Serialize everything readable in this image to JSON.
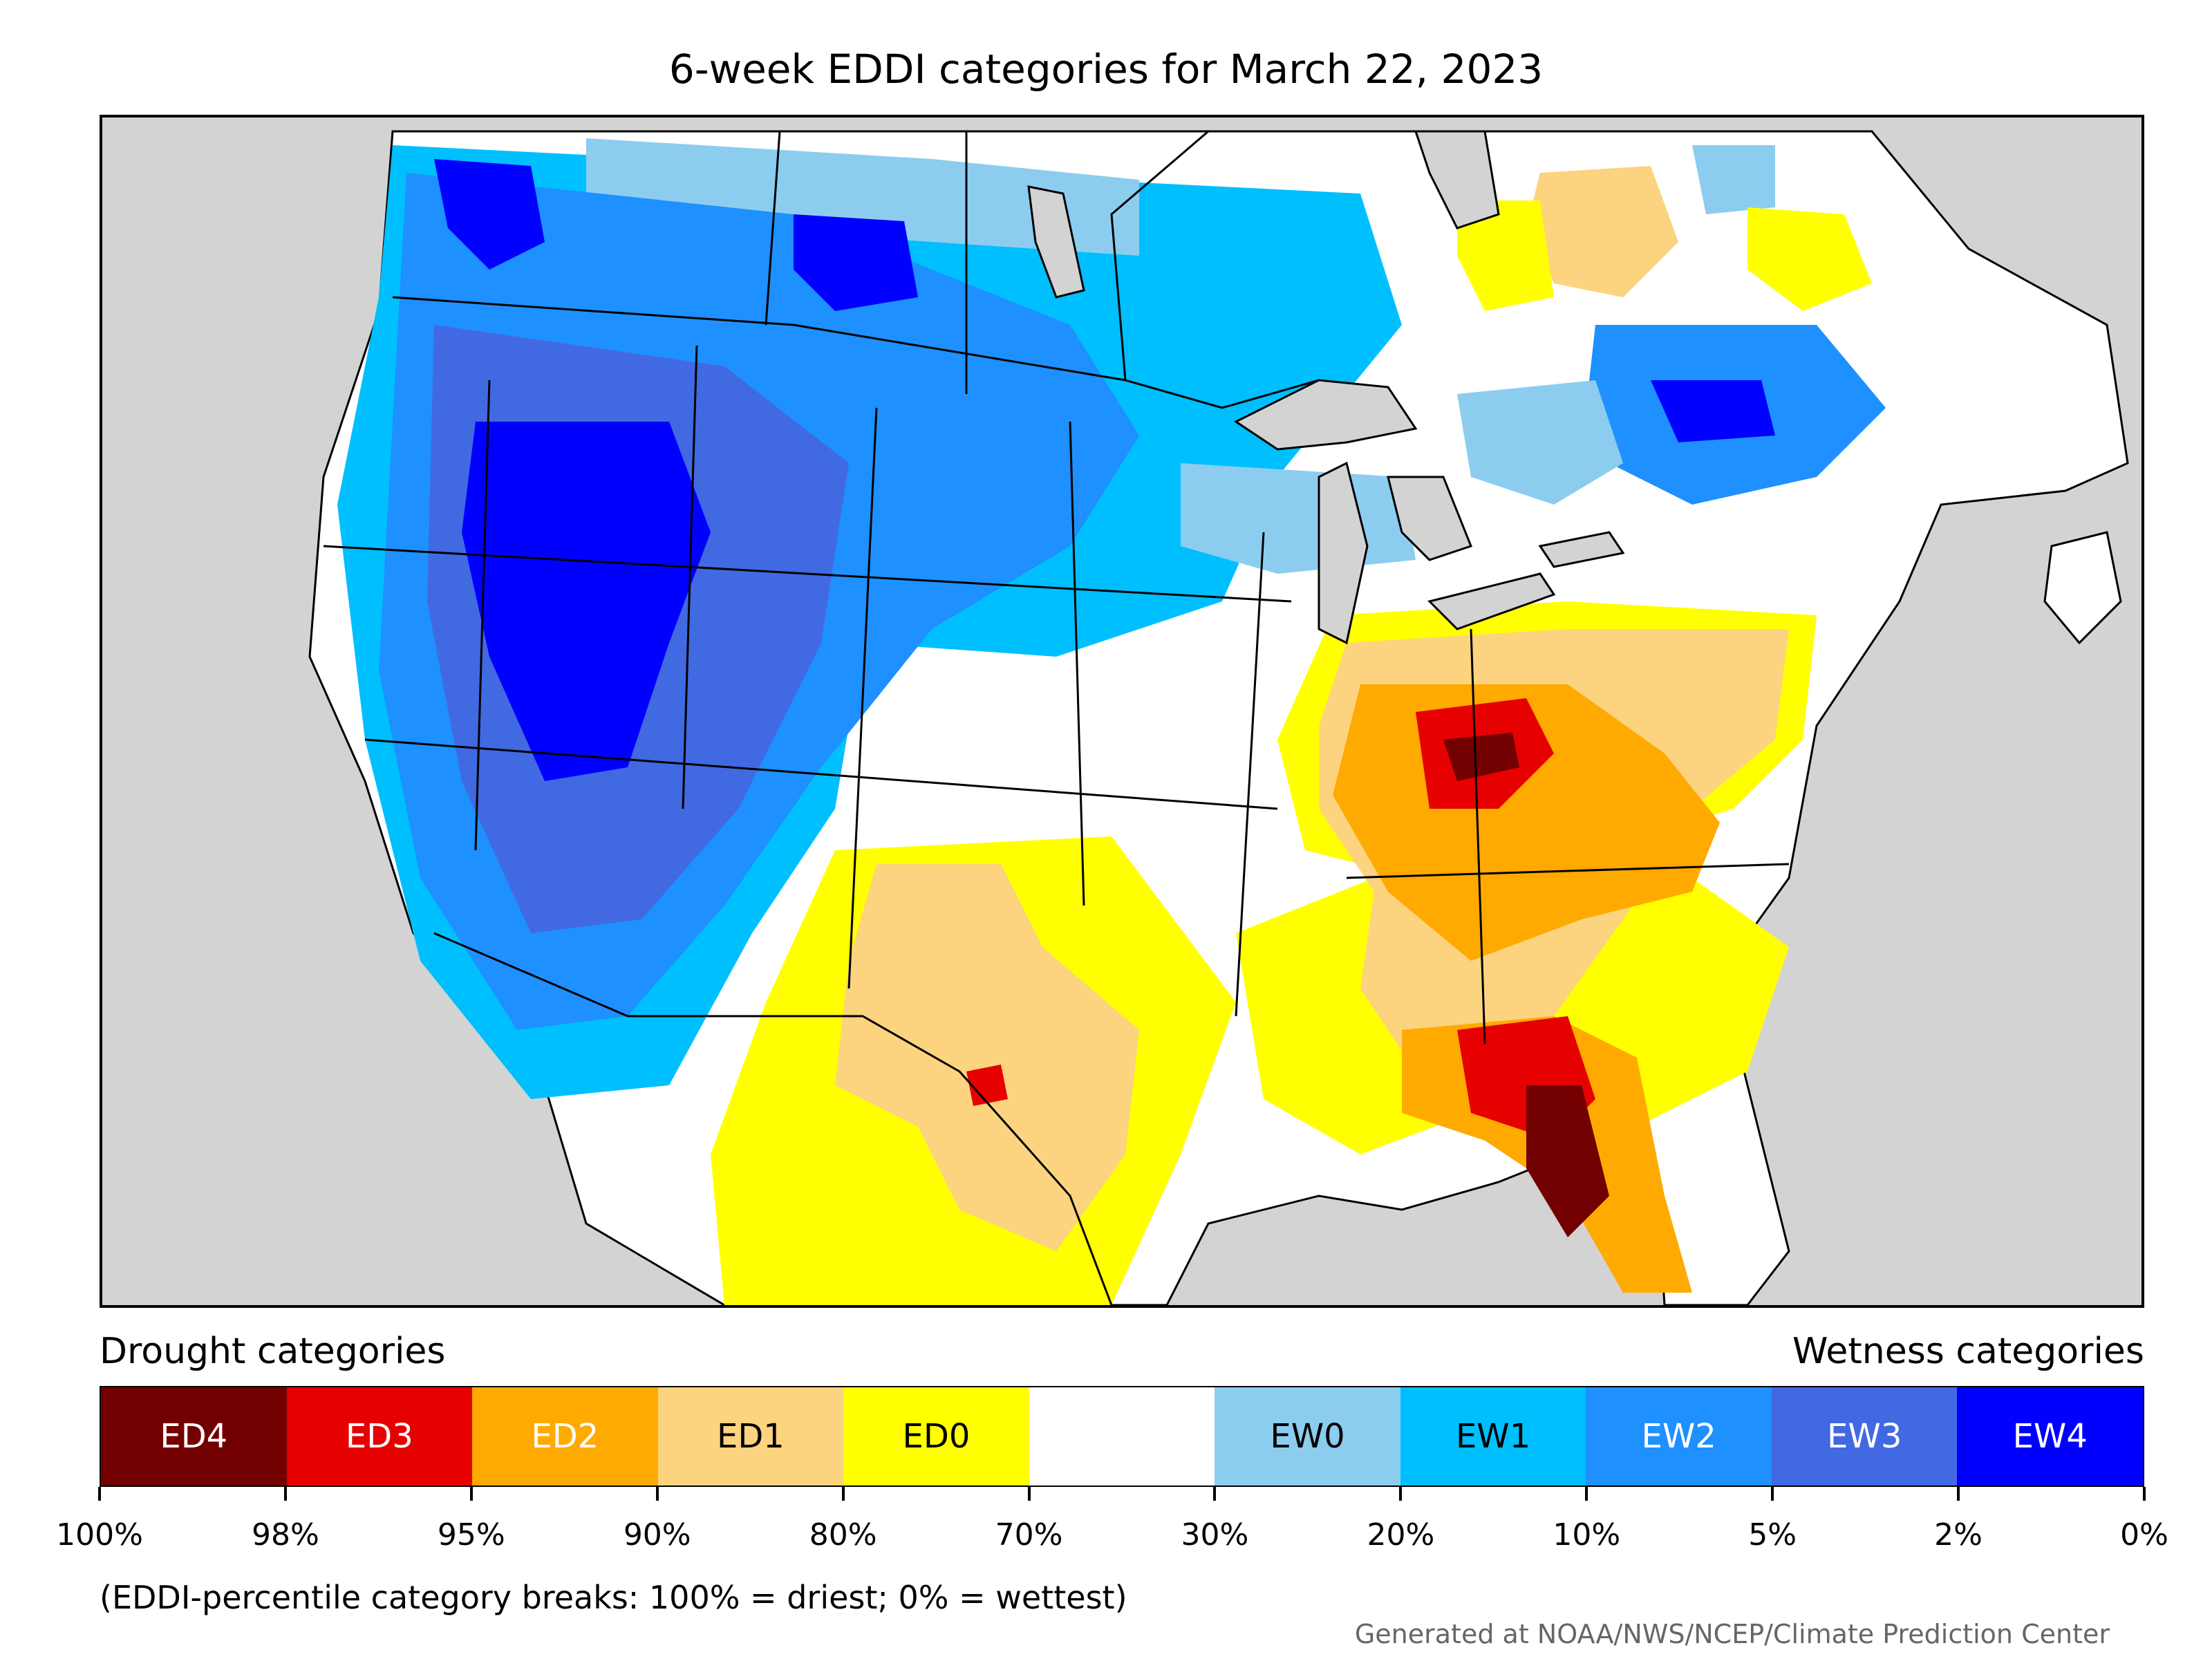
{
  "title": "6-week EDDI categories for March 22, 2023",
  "legend": {
    "left_heading": "Drought categories",
    "right_heading": "Wetness categories",
    "categories": [
      {
        "label": "ED4",
        "color": "#730000",
        "text_color": "#ffffff"
      },
      {
        "label": "ED3",
        "color": "#e60000",
        "text_color": "#ffffff"
      },
      {
        "label": "ED2",
        "color": "#ffaa00",
        "text_color": "#ffffff"
      },
      {
        "label": "ED1",
        "color": "#fcd37f",
        "text_color": "#000000"
      },
      {
        "label": "ED0",
        "color": "#ffff00",
        "text_color": "#000000"
      },
      {
        "label": "",
        "color": "#ffffff",
        "text_color": "#000000"
      },
      {
        "label": "EW0",
        "color": "#8ccdef",
        "text_color": "#000000"
      },
      {
        "label": "EW1",
        "color": "#00bfff",
        "text_color": "#000000"
      },
      {
        "label": "EW2",
        "color": "#1e90ff",
        "text_color": "#ffffff"
      },
      {
        "label": "EW3",
        "color": "#4169e1",
        "text_color": "#ffffff"
      },
      {
        "label": "EW4",
        "color": "#0000ff",
        "text_color": "#ffffff"
      }
    ],
    "ticks": [
      "100%",
      "98%",
      "95%",
      "90%",
      "80%",
      "70%",
      "30%",
      "20%",
      "10%",
      "5%",
      "2%",
      "0%"
    ]
  },
  "note": "(EDDI-percentile category breaks: 100% = driest; 0% = wettest)",
  "credit": "Generated at NOAA/NWS/NCEP/Climate Prediction Center",
  "map": {
    "ocean_color": "#d3d3d3",
    "land_color": "#ffffff",
    "border_color": "#000000"
  }
}
